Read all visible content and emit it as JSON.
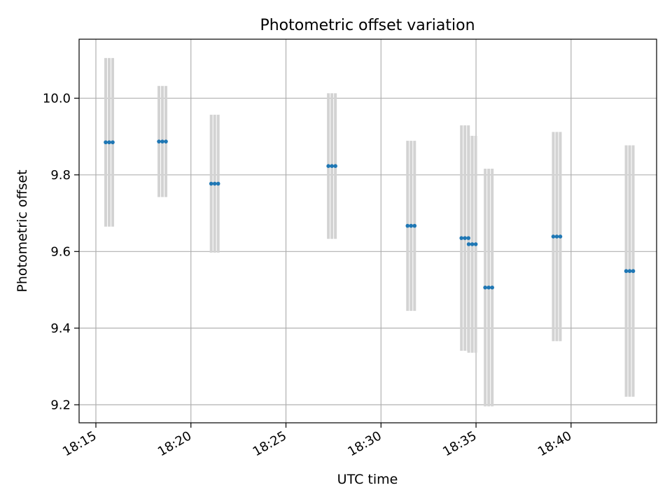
{
  "chart_data": {
    "type": "scatter",
    "title": "Photometric offset variation",
    "xlabel": "UTC time",
    "ylabel": "Photometric offset",
    "x_tick_labels": [
      "18:15",
      "18:20",
      "18:25",
      "18:30",
      "18:35",
      "18:40"
    ],
    "y_tick_labels": [
      "9.2",
      "9.4",
      "9.6",
      "9.8",
      "10.0"
    ],
    "xlim": [
      "18:14:07",
      "18:44:30"
    ],
    "ylim": [
      9.153,
      10.154
    ],
    "grid": true,
    "series": [
      {
        "points": [
          {
            "x": "18:15:42",
            "y": 9.885,
            "y_err": 0.22
          },
          {
            "x": "18:18:30",
            "y": 9.887,
            "y_err": 0.145
          },
          {
            "x": "18:21:15",
            "y": 9.777,
            "y_err": 0.18
          },
          {
            "x": "18:27:25",
            "y": 9.823,
            "y_err": 0.19
          },
          {
            "x": "18:31:35",
            "y": 9.667,
            "y_err": 0.222
          },
          {
            "x": "18:34:25",
            "y": 9.635,
            "y_err": 0.294
          },
          {
            "x": "18:34:48",
            "y": 9.619,
            "y_err": 0.283
          },
          {
            "x": "18:35:40",
            "y": 9.506,
            "y_err": 0.31
          },
          {
            "x": "18:39:15",
            "y": 9.639,
            "y_err": 0.273
          },
          {
            "x": "18:43:05",
            "y": 9.549,
            "y_err": 0.328
          }
        ]
      }
    ],
    "colors": {
      "marker": "#1f77b4",
      "errorbar": "#d3d3d3",
      "grid": "#b0b0b0"
    }
  }
}
